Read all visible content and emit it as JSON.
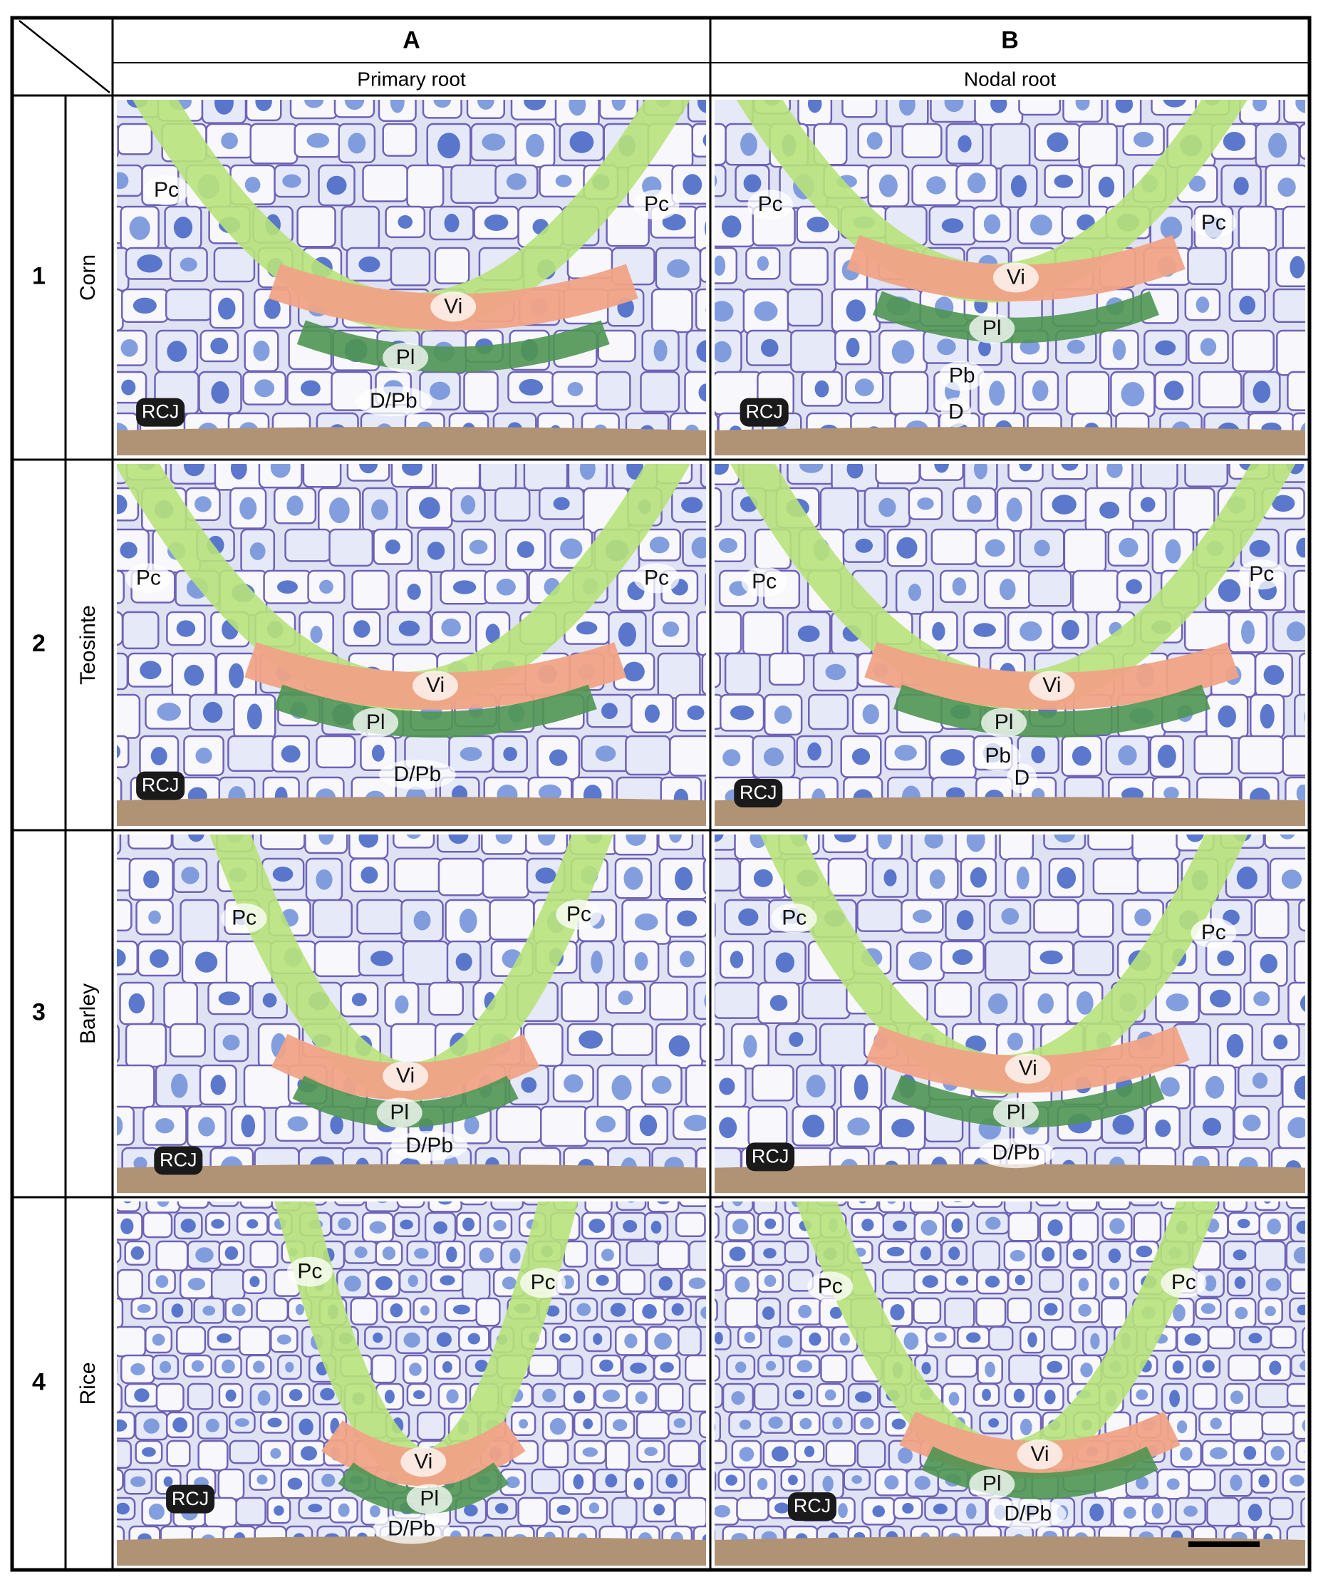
{
  "header": {
    "columns": [
      {
        "letter": "A",
        "label": "Primary root"
      },
      {
        "letter": "B",
        "label": "Nodal root"
      }
    ]
  },
  "rows": [
    {
      "number": "1",
      "species": "Corn",
      "panels": [
        {
          "labels": [
            "Pc",
            "Pc",
            "Vi",
            "Pl",
            "D/Pb",
            "RCJ"
          ]
        },
        {
          "labels": [
            "Pc",
            "Pc",
            "Vi",
            "Pl",
            "Pb",
            "D",
            "RCJ"
          ]
        }
      ]
    },
    {
      "number": "2",
      "species": "Teosinte",
      "panels": [
        {
          "labels": [
            "Pc",
            "Pc",
            "Vi",
            "Pl",
            "D/Pb",
            "RCJ"
          ]
        },
        {
          "labels": [
            "Pc",
            "Pc",
            "Vi",
            "Pl",
            "Pb",
            "D",
            "RCJ"
          ]
        }
      ]
    },
    {
      "number": "3",
      "species": "Barley",
      "panels": [
        {
          "labels": [
            "Pc",
            "Pc",
            "Vi",
            "Pl",
            "D/Pb",
            "RCJ"
          ]
        },
        {
          "labels": [
            "Pc",
            "Pc",
            "Vi",
            "Pl",
            "D/Pb",
            "RCJ"
          ]
        }
      ]
    },
    {
      "number": "4",
      "species": "Rice",
      "panels": [
        {
          "labels": [
            "Pc",
            "Pc",
            "Vi",
            "Pl",
            "D/Pb",
            "RCJ"
          ]
        },
        {
          "labels": [
            "Pc",
            "Pc",
            "Vi",
            "Pl",
            "D/Pb",
            "RCJ"
          ]
        }
      ]
    }
  ]
}
